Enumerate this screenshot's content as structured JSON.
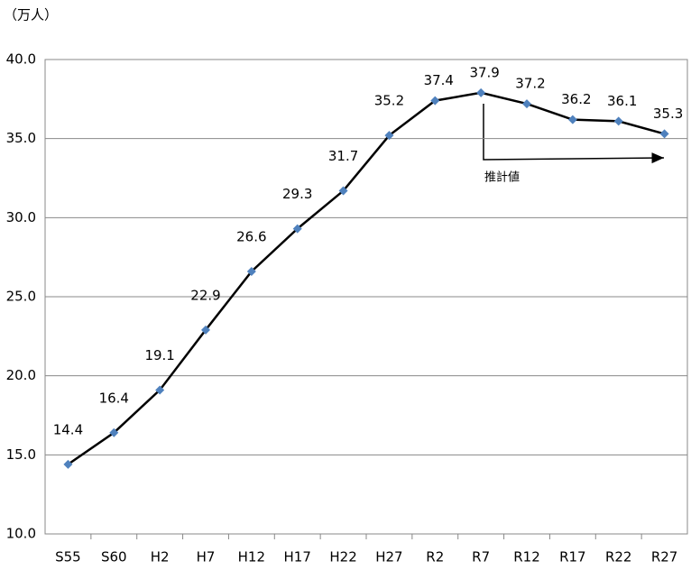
{
  "chart_data": {
    "type": "line",
    "y_unit_label": "（万人）",
    "annotation": "推計値",
    "categories": [
      "S55",
      "S60",
      "H2",
      "H7",
      "H12",
      "H17",
      "H22",
      "H27",
      "R2",
      "R7",
      "R12",
      "R17",
      "R22",
      "R27"
    ],
    "series": [
      {
        "color": "#4f81bd",
        "values": [
          14.4,
          16.4,
          19.1,
          22.9,
          26.6,
          29.3,
          31.7,
          35.2,
          37.4,
          37.9,
          37.2,
          36.2,
          36.1,
          35.3
        ]
      }
    ],
    "ylim": [
      10,
      40
    ],
    "yticks": [
      {
        "value": 10,
        "label": "10.0"
      },
      {
        "value": 15,
        "label": "15.0"
      },
      {
        "value": 20,
        "label": "20.0"
      },
      {
        "value": 25,
        "label": "25.0"
      },
      {
        "value": 30,
        "label": "30.0"
      },
      {
        "value": 35,
        "label": "35.0"
      },
      {
        "value": 40,
        "label": "40.0"
      }
    ],
    "grid": true
  }
}
